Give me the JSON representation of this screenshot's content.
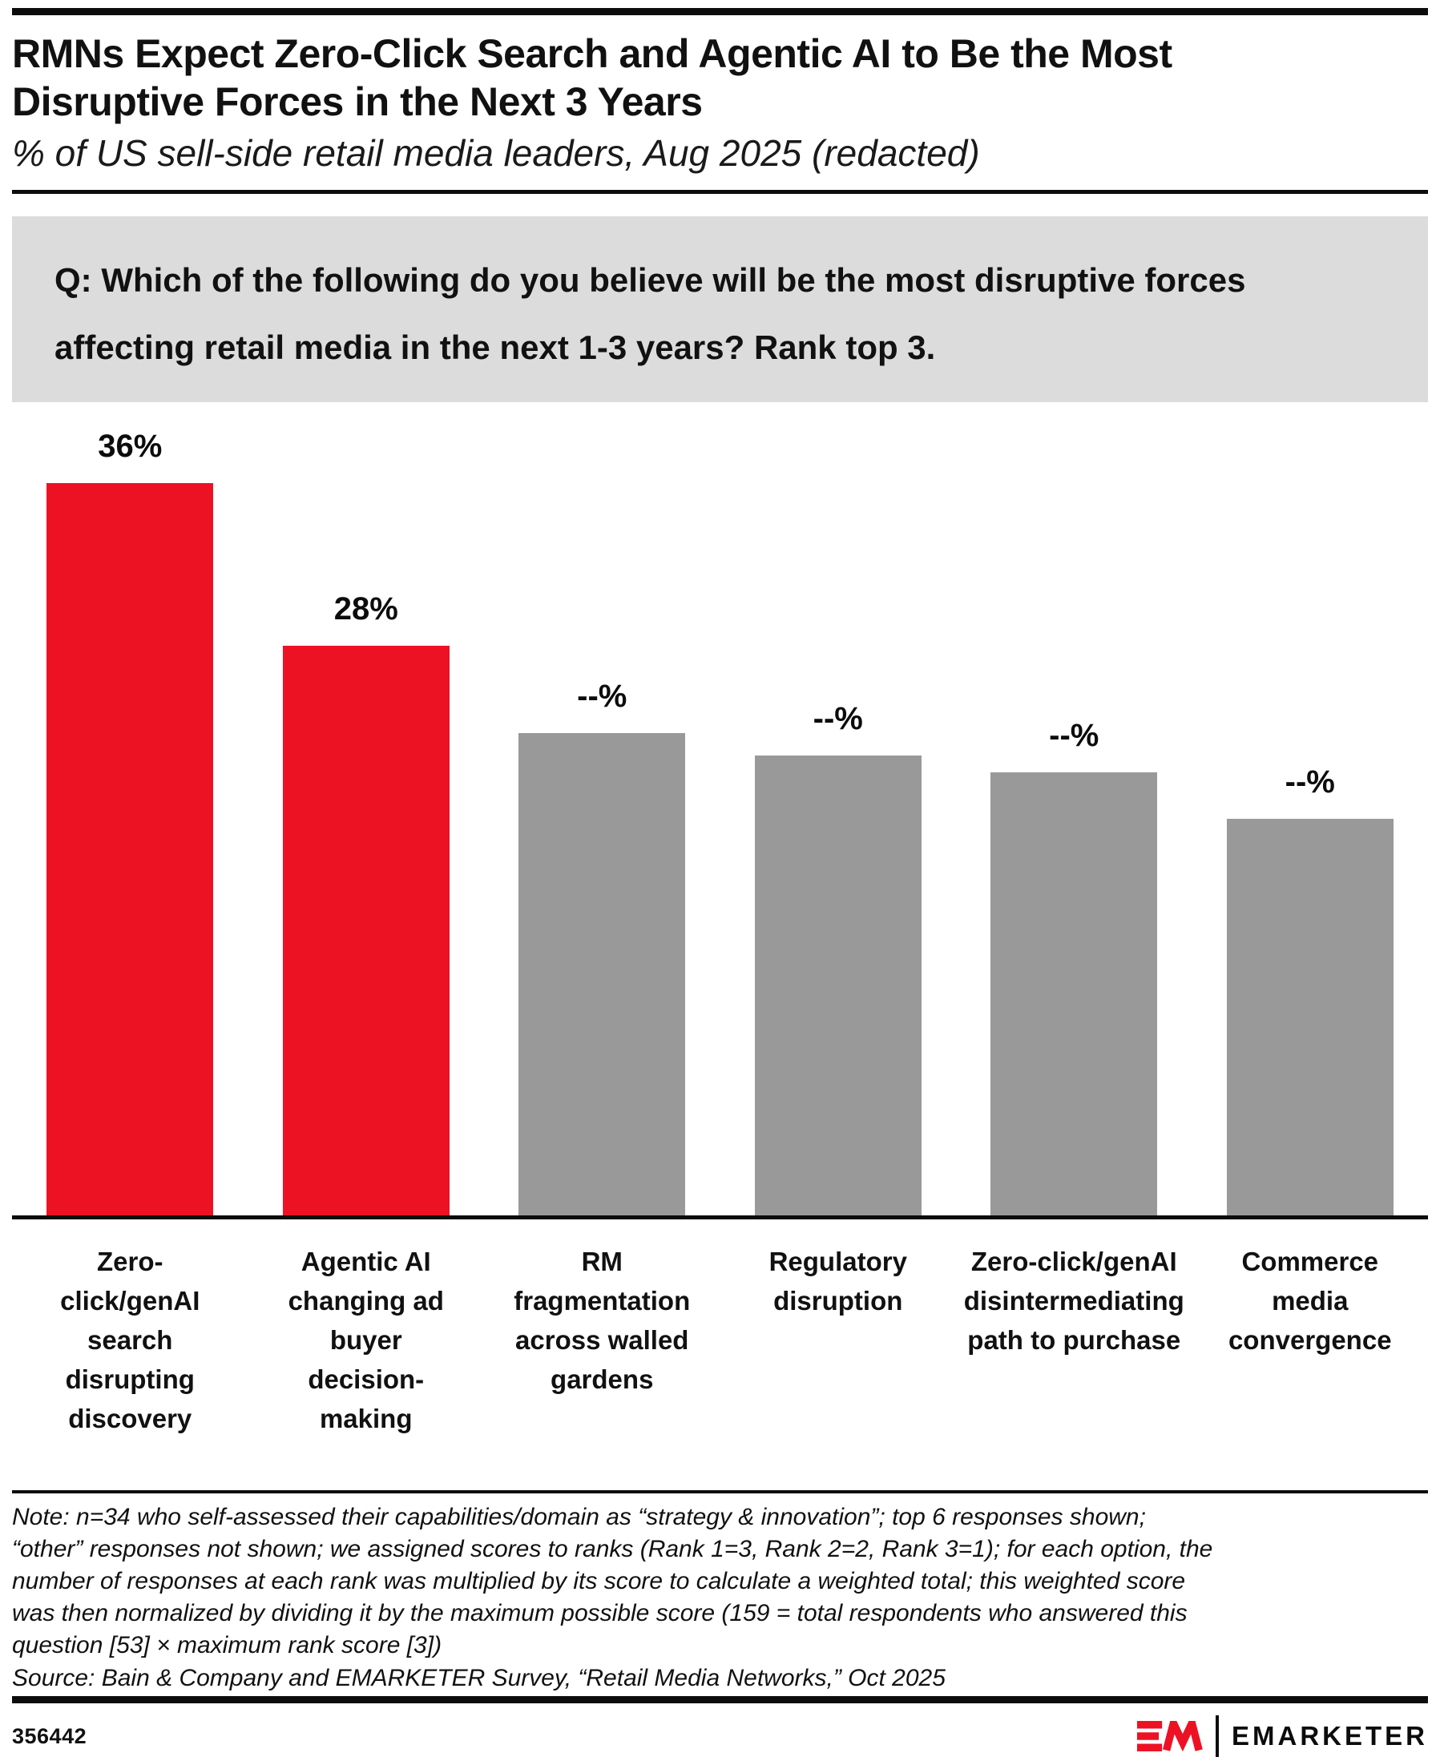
{
  "header": {
    "title": "RMNs Expect Zero-Click Search and Agentic AI to Be the Most\nDisruptive Forces in the Next 3 Years",
    "subtitle": "% of US sell-side retail media leaders, Aug 2025 (redacted)"
  },
  "question": {
    "text": "Q: Which of the following do you believe will be the most disruptive forces\naffecting retail media in the next 1-3 years? Rank top 3."
  },
  "chart_data": {
    "type": "bar",
    "title": "RMNs Expect Zero-Click Search and Agentic AI to Be the Most Disruptive Forces in the Next 3 Years",
    "subtitle": "% of US sell-side retail media leaders, Aug 2025 (redacted)",
    "categories": [
      "Zero-click/genAI search disrupting discovery",
      "Agentic AI changing ad buyer decision-making",
      "RM fragmentation across walled gardens",
      "Regulatory disruption",
      "Zero-click/genAI disintermediating path to purchase",
      "Commerce media convergence"
    ],
    "categories_wrapped": [
      "Zero-\nclick/genAI\nsearch\ndisrupting\ndiscovery",
      "Agentic AI\nchanging ad\nbuyer\ndecision-\nmaking",
      "RM\nfragmentation\nacross walled\ngardens",
      "Regulatory\ndisruption",
      "Zero-click/genAI\ndisintermediating\npath to purchase",
      "Commerce\nmedia\nconvergence"
    ],
    "values": [
      36,
      28,
      23.7,
      22.6,
      21.8,
      19.5
    ],
    "value_labels": [
      "36%",
      "28%",
      "--%",
      "--%",
      "--%",
      "--%"
    ],
    "redacted": [
      false,
      false,
      true,
      true,
      true,
      true
    ],
    "bar_colors": [
      "#EC1224",
      "#EC1224",
      "#999999",
      "#999999",
      "#999999",
      "#999999"
    ],
    "highlight_color": "#EC1224",
    "muted_color": "#999999",
    "unit": "%",
    "ylim": [
      0,
      39.4
    ],
    "grid": false,
    "legend": false,
    "value_axis_visible": false
  },
  "footnotes": {
    "note": "Note: n=34 who self-assessed their capabilities/domain as “strategy & innovation”; top 6 responses shown;\n“other” responses not shown; we assigned scores to ranks (Rank 1=3, Rank 2=2, Rank 3=1); for each option, the\nnumber of responses at each rank was multiplied by its score to calculate a weighted total; this weighted score\nwas then normalized by dividing it by the maximum possible score (159 = total respondents who answered this\nquestion [53] × maximum rank score [3])",
    "source": "Source: Bain & Company and EMARKETER Survey, “Retail Media Networks,” Oct 2025"
  },
  "footer": {
    "chart_id": "356442",
    "brand": "EMARKETER"
  },
  "colors": {
    "accent_red": "#EC1224",
    "muted_gray": "#999999",
    "question_box_bg": "#DCDCDC",
    "text_black": "#0C0C0C"
  }
}
